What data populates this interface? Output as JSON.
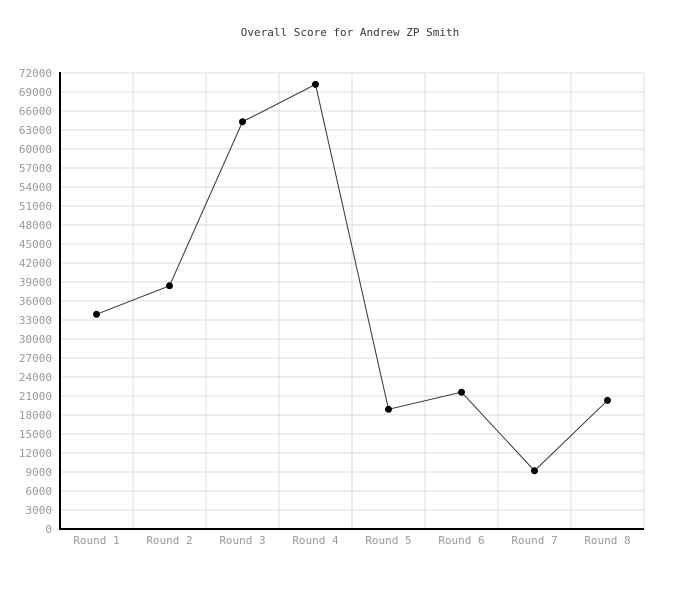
{
  "chart_data": {
    "type": "line",
    "title": "Overall Score for Andrew ZP Smith",
    "categories": [
      "Round 1",
      "Round 2",
      "Round 3",
      "Round 4",
      "Round 5",
      "Round 6",
      "Round 7",
      "Round 8"
    ],
    "series": [
      {
        "name": "Overall Score",
        "values": [
          33900,
          38400,
          64300,
          70200,
          18900,
          21600,
          9200,
          20300
        ]
      }
    ],
    "xlabel": "",
    "ylabel": "",
    "ylim": [
      0,
      72000
    ],
    "ytick_step": 3000,
    "yticks": [
      0,
      3000,
      6000,
      9000,
      12000,
      15000,
      18000,
      21000,
      24000,
      27000,
      30000,
      33000,
      36000,
      39000,
      42000,
      45000,
      48000,
      51000,
      54000,
      57000,
      60000,
      63000,
      66000,
      69000,
      72000
    ],
    "grid": true,
    "legend_position": "none",
    "marker": "filled-circle",
    "colors": {
      "background": "#ffffff",
      "gridline": "#dcdcdc",
      "axis": "#000000",
      "line": "#333333",
      "marker": "#000000",
      "tick_label": "#9a9a9a",
      "title": "#3a3a3a"
    }
  }
}
